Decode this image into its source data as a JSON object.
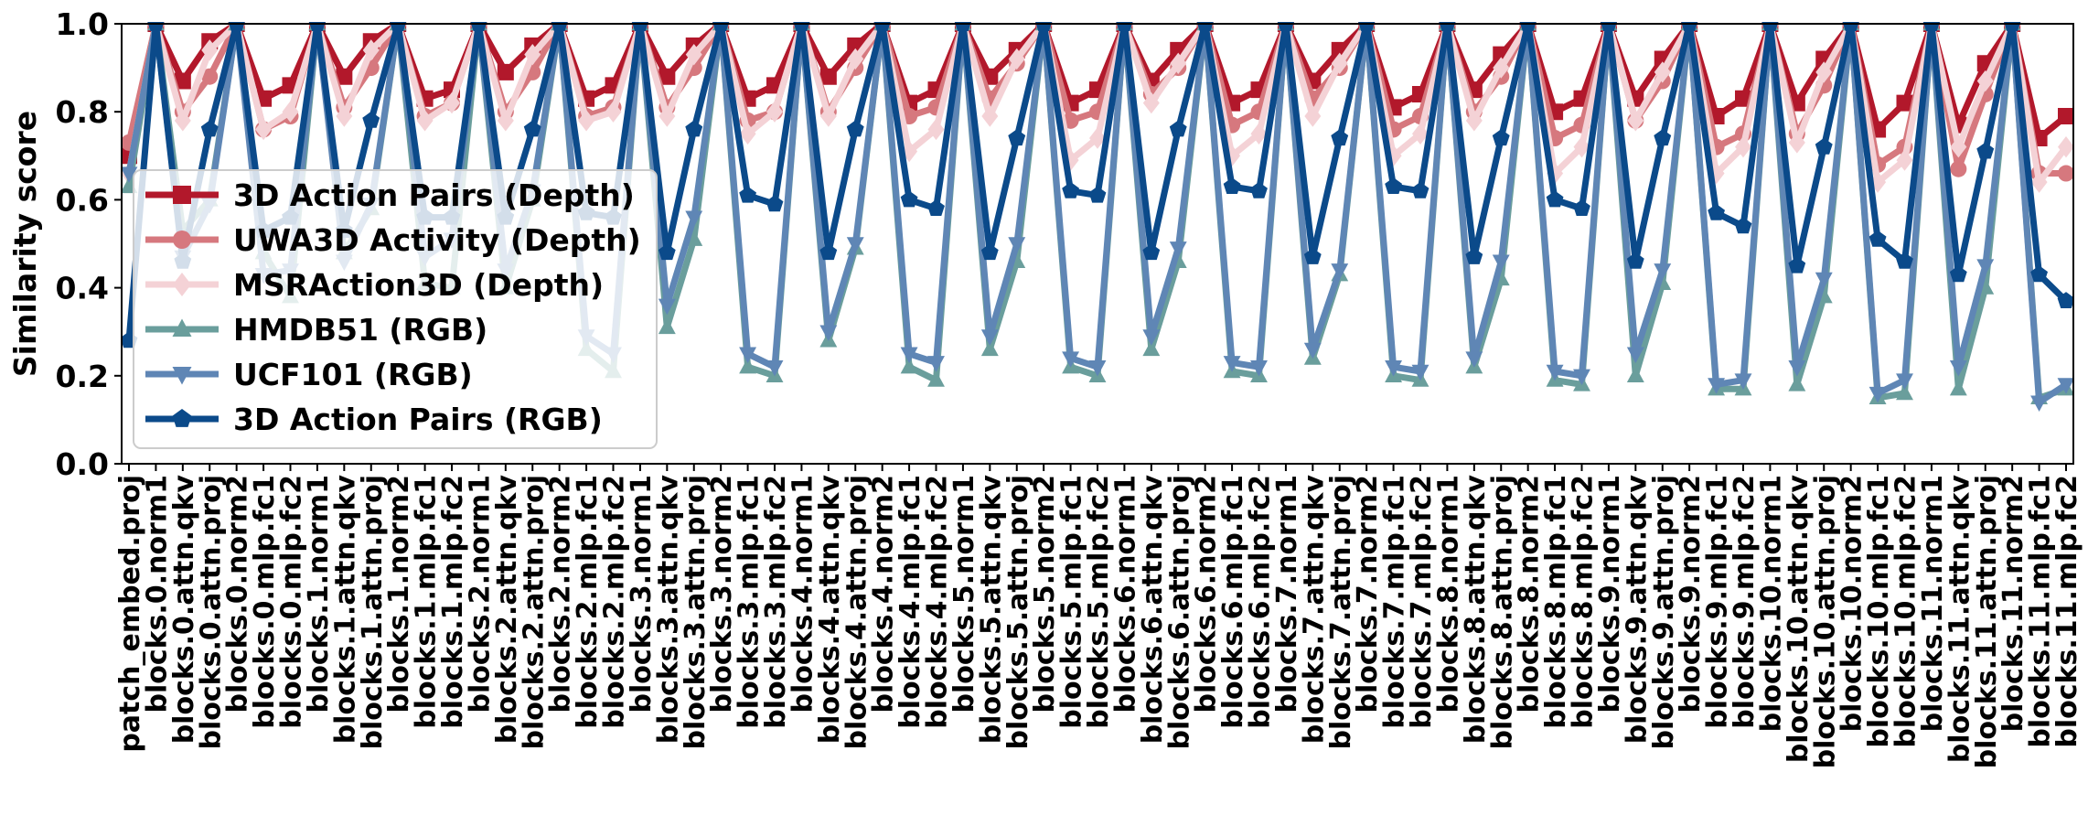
{
  "chart_data": {
    "type": "line",
    "title": "",
    "xlabel": "",
    "ylabel": "Similarity score",
    "ylim": [
      0.0,
      1.0
    ],
    "yticks": [
      "0.0",
      "0.2",
      "0.4",
      "0.6",
      "0.8",
      "1.0"
    ],
    "grid": false,
    "legend_position": "center-left",
    "categories": [
      "patch_embed.proj",
      "blocks.0.norm1",
      "blocks.0.attn.qkv",
      "blocks.0.attn.proj",
      "blocks.0.norm2",
      "blocks.0.mlp.fc1",
      "blocks.0.mlp.fc2",
      "blocks.1.norm1",
      "blocks.1.attn.qkv",
      "blocks.1.attn.proj",
      "blocks.1.norm2",
      "blocks.1.mlp.fc1",
      "blocks.1.mlp.fc2",
      "blocks.2.norm1",
      "blocks.2.attn.qkv",
      "blocks.2.attn.proj",
      "blocks.2.norm2",
      "blocks.2.mlp.fc1",
      "blocks.2.mlp.fc2",
      "blocks.3.norm1",
      "blocks.3.attn.qkv",
      "blocks.3.attn.proj",
      "blocks.3.norm2",
      "blocks.3.mlp.fc1",
      "blocks.3.mlp.fc2",
      "blocks.4.norm1",
      "blocks.4.attn.qkv",
      "blocks.4.attn.proj",
      "blocks.4.norm2",
      "blocks.4.mlp.fc1",
      "blocks.4.mlp.fc2",
      "blocks.5.norm1",
      "blocks.5.attn.qkv",
      "blocks.5.attn.proj",
      "blocks.5.norm2",
      "blocks.5.mlp.fc1",
      "blocks.5.mlp.fc2",
      "blocks.6.norm1",
      "blocks.6.attn.qkv",
      "blocks.6.attn.proj",
      "blocks.6.norm2",
      "blocks.6.mlp.fc1",
      "blocks.6.mlp.fc2",
      "blocks.7.norm1",
      "blocks.7.attn.qkv",
      "blocks.7.attn.proj",
      "blocks.7.norm2",
      "blocks.7.mlp.fc1",
      "blocks.7.mlp.fc2",
      "blocks.8.norm1",
      "blocks.8.attn.qkv",
      "blocks.8.attn.proj",
      "blocks.8.norm2",
      "blocks.8.mlp.fc1",
      "blocks.8.mlp.fc2",
      "blocks.9.norm1",
      "blocks.9.attn.qkv",
      "blocks.9.attn.proj",
      "blocks.9.norm2",
      "blocks.9.mlp.fc1",
      "blocks.9.mlp.fc2",
      "blocks.10.norm1",
      "blocks.10.attn.qkv",
      "blocks.10.attn.proj",
      "blocks.10.norm2",
      "blocks.10.mlp.fc1",
      "blocks.10.mlp.fc2",
      "blocks.11.norm1",
      "blocks.11.attn.qkv",
      "blocks.11.attn.proj",
      "blocks.11.norm2",
      "blocks.11.mlp.fc1",
      "blocks.11.mlp.fc2"
    ],
    "series": [
      {
        "name": "3D Action Pairs (Depth)",
        "color": "#b2182b",
        "marker": "square",
        "values": [
          0.7,
          1.0,
          0.87,
          0.96,
          1.0,
          0.83,
          0.86,
          1.0,
          0.88,
          0.96,
          1.0,
          0.83,
          0.85,
          1.0,
          0.89,
          0.95,
          1.0,
          0.83,
          0.86,
          1.0,
          0.88,
          0.95,
          1.0,
          0.83,
          0.86,
          1.0,
          0.88,
          0.95,
          1.0,
          0.82,
          0.85,
          1.0,
          0.88,
          0.94,
          1.0,
          0.82,
          0.85,
          1.0,
          0.87,
          0.94,
          1.0,
          0.82,
          0.85,
          1.0,
          0.87,
          0.94,
          1.0,
          0.81,
          0.84,
          1.0,
          0.85,
          0.93,
          1.0,
          0.8,
          0.83,
          1.0,
          0.83,
          0.92,
          1.0,
          0.79,
          0.83,
          1.0,
          0.82,
          0.92,
          1.0,
          0.76,
          0.82,
          1.0,
          0.77,
          0.91,
          1.0,
          0.74,
          0.79
        ]
      },
      {
        "name": "UWA3D Activity (Depth)",
        "color": "#d6787e",
        "marker": "circle",
        "values": [
          0.73,
          1.0,
          0.8,
          0.88,
          1.0,
          0.76,
          0.79,
          1.0,
          0.81,
          0.9,
          1.0,
          0.79,
          0.82,
          1.0,
          0.8,
          0.89,
          1.0,
          0.79,
          0.81,
          1.0,
          0.81,
          0.9,
          1.0,
          0.78,
          0.8,
          1.0,
          0.8,
          0.9,
          1.0,
          0.79,
          0.81,
          1.0,
          0.83,
          0.91,
          1.0,
          0.78,
          0.8,
          1.0,
          0.84,
          0.9,
          1.0,
          0.77,
          0.8,
          1.0,
          0.83,
          0.9,
          1.0,
          0.76,
          0.79,
          1.0,
          0.8,
          0.88,
          1.0,
          0.74,
          0.77,
          1.0,
          0.78,
          0.87,
          1.0,
          0.72,
          0.75,
          1.0,
          0.75,
          0.86,
          1.0,
          0.68,
          0.72,
          1.0,
          0.67,
          0.84,
          1.0,
          0.66,
          0.66
        ]
      },
      {
        "name": "MSRAction3D (Depth)",
        "color": "#f4d2d6",
        "marker": "diamond",
        "values": [
          0.66,
          1.0,
          0.78,
          0.94,
          1.0,
          0.76,
          0.8,
          1.0,
          0.79,
          0.94,
          1.0,
          0.78,
          0.82,
          1.0,
          0.78,
          0.93,
          1.0,
          0.78,
          0.8,
          1.0,
          0.79,
          0.93,
          1.0,
          0.75,
          0.8,
          1.0,
          0.79,
          0.92,
          1.0,
          0.71,
          0.76,
          1.0,
          0.79,
          0.92,
          1.0,
          0.69,
          0.74,
          1.0,
          0.82,
          0.91,
          1.0,
          0.7,
          0.75,
          1.0,
          0.79,
          0.91,
          1.0,
          0.7,
          0.75,
          1.0,
          0.78,
          0.9,
          1.0,
          0.66,
          0.72,
          1.0,
          0.78,
          0.89,
          1.0,
          0.66,
          0.72,
          1.0,
          0.73,
          0.89,
          1.0,
          0.64,
          0.69,
          1.0,
          0.72,
          0.87,
          1.0,
          0.64,
          0.72
        ]
      },
      {
        "name": "HMDB51 (RGB)",
        "color": "#6a9e9c",
        "marker": "triangle-up",
        "values": [
          0.63,
          1.0,
          0.53,
          0.6,
          1.0,
          0.48,
          0.38,
          1.0,
          0.48,
          0.58,
          1.0,
          0.41,
          0.4,
          1.0,
          0.4,
          0.6,
          1.0,
          0.26,
          0.21,
          1.0,
          0.31,
          0.51,
          1.0,
          0.22,
          0.2,
          1.0,
          0.28,
          0.49,
          1.0,
          0.22,
          0.19,
          1.0,
          0.26,
          0.46,
          1.0,
          0.22,
          0.2,
          1.0,
          0.26,
          0.46,
          1.0,
          0.21,
          0.2,
          1.0,
          0.24,
          0.43,
          1.0,
          0.2,
          0.19,
          1.0,
          0.22,
          0.42,
          1.0,
          0.19,
          0.18,
          1.0,
          0.2,
          0.41,
          1.0,
          0.17,
          0.17,
          1.0,
          0.18,
          0.38,
          1.0,
          0.15,
          0.16,
          1.0,
          0.17,
          0.4,
          1.0,
          0.15,
          0.17
        ]
      },
      {
        "name": "UCF101 (RGB)",
        "color": "#5f86b5",
        "marker": "triangle-down",
        "values": [
          0.66,
          1.0,
          0.47,
          0.59,
          1.0,
          0.43,
          0.44,
          1.0,
          0.46,
          0.59,
          1.0,
          0.47,
          0.51,
          1.0,
          0.44,
          0.62,
          1.0,
          0.29,
          0.25,
          1.0,
          0.36,
          0.56,
          1.0,
          0.25,
          0.22,
          1.0,
          0.3,
          0.5,
          1.0,
          0.25,
          0.23,
          1.0,
          0.29,
          0.5,
          1.0,
          0.24,
          0.22,
          1.0,
          0.29,
          0.49,
          1.0,
          0.23,
          0.22,
          1.0,
          0.26,
          0.44,
          1.0,
          0.22,
          0.21,
          1.0,
          0.24,
          0.46,
          1.0,
          0.21,
          0.2,
          1.0,
          0.25,
          0.44,
          1.0,
          0.18,
          0.19,
          1.0,
          0.22,
          0.42,
          1.0,
          0.16,
          0.19,
          1.0,
          0.22,
          0.45,
          1.0,
          0.14,
          0.18
        ]
      },
      {
        "name": "3D Action Pairs (RGB)",
        "color": "#0b4a8a",
        "marker": "pentagon",
        "values": [
          0.28,
          1.0,
          0.46,
          0.76,
          1.0,
          0.53,
          0.56,
          1.0,
          0.53,
          0.78,
          1.0,
          0.56,
          0.56,
          1.0,
          0.56,
          0.76,
          1.0,
          0.57,
          0.56,
          1.0,
          0.48,
          0.76,
          1.0,
          0.61,
          0.59,
          1.0,
          0.48,
          0.76,
          1.0,
          0.6,
          0.58,
          1.0,
          0.48,
          0.74,
          1.0,
          0.62,
          0.61,
          1.0,
          0.48,
          0.76,
          1.0,
          0.63,
          0.62,
          1.0,
          0.47,
          0.74,
          1.0,
          0.63,
          0.62,
          1.0,
          0.47,
          0.74,
          1.0,
          0.6,
          0.58,
          1.0,
          0.46,
          0.74,
          1.0,
          0.57,
          0.54,
          1.0,
          0.45,
          0.72,
          1.0,
          0.51,
          0.46,
          1.0,
          0.43,
          0.71,
          1.0,
          0.43,
          0.37
        ]
      }
    ]
  }
}
